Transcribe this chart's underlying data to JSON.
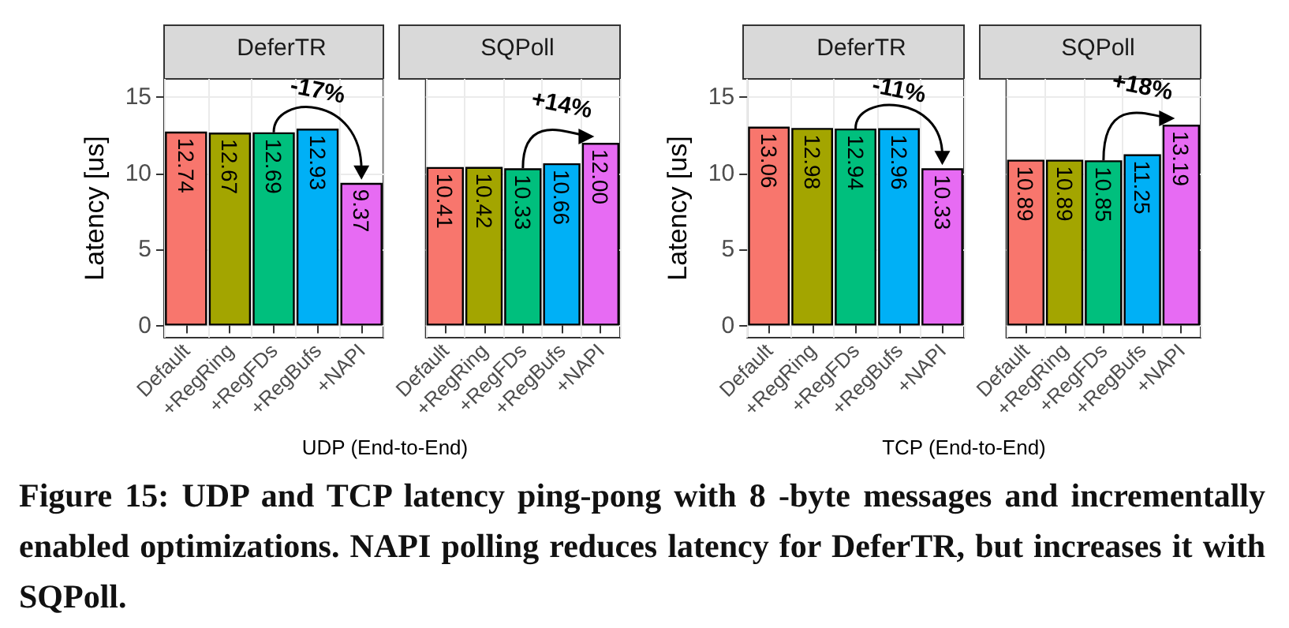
{
  "chart_data": [
    {
      "type": "bar",
      "title": "DeferTR",
      "ylabel": "Latency [us]",
      "xlabel": "UDP (End-to-End)",
      "categories": [
        "Default",
        "+RegRing",
        "+RegFDs",
        "+RegBufs",
        "+NAPI"
      ],
      "values": [
        12.74,
        12.67,
        12.69,
        12.93,
        9.37
      ],
      "value_labels": [
        "12.74",
        "12.67",
        "12.69",
        "12.93",
        "9.37"
      ],
      "colors": [
        "#f8766d",
        "#a3a500",
        "#00bf7d",
        "#00b0f6",
        "#e76bf3"
      ],
      "ylim": [
        -0.8,
        16.2
      ],
      "yticks": [
        0,
        5,
        10,
        15
      ],
      "grid": true,
      "annotations": [
        "-17%",
        "Figure 15: UDP and TCP latency ping-pong with 8 -byte messages and incrementally enabled optimizations. NAPI polling reduces latency for DeferTR, but increases it with SQPoll."
      ]
    },
    {
      "type": "bar",
      "title": "SQPoll",
      "categories": [
        "Default",
        "+RegRing",
        "+RegFDs",
        "+RegBufs",
        "+NAPI"
      ],
      "values": [
        10.41,
        10.42,
        10.33,
        10.66,
        12.0
      ],
      "value_labels": [
        "10.41",
        "10.42",
        "10.33",
        "10.66",
        "12.00"
      ],
      "colors": [
        "#f8766d",
        "#a3a500",
        "#00bf7d",
        "#00b0f6",
        "#e76bf3"
      ],
      "ylim": [
        -0.8,
        16.2
      ],
      "yticks": [
        0,
        5,
        10,
        15
      ],
      "grid": true,
      "tick_labels": "x",
      "annotations": [
        "+14%"
      ]
    },
    {
      "type": "bar",
      "title": "DeferTR",
      "ylabel": "Latency [us]",
      "xlabel": "TCP (End-to-End)",
      "categories": [
        "Default",
        "+RegRing",
        "+RegFDs",
        "+RegBufs",
        "+NAPI"
      ],
      "values": [
        13.06,
        12.98,
        12.94,
        12.96,
        10.33
      ],
      "value_labels": [
        "13.06",
        "12.98",
        "12.94",
        "12.96",
        "10.33"
      ],
      "colors": [
        "#f8766d",
        "#a3a500",
        "#00bf7d",
        "#00b0f6",
        "#e76bf3"
      ],
      "ylim": [
        -0.8,
        16.2
      ],
      "yticks": [
        0,
        5,
        10,
        15
      ],
      "grid": true,
      "annotations": [
        "-11%"
      ]
    },
    {
      "type": "bar",
      "title": "SQPoll",
      "categories": [
        "Default",
        "+RegRing",
        "+RegFDs",
        "+RegBufs",
        "+NAPI"
      ],
      "values": [
        10.89,
        10.89,
        10.85,
        11.25,
        13.19
      ],
      "value_labels": [
        "10.89",
        "10.89",
        "10.85",
        "11.25",
        "13.19"
      ],
      "colors": [
        "#f8766d",
        "#a3a500",
        "#00bf7d",
        "#00b0f6",
        "#e76bf3"
      ],
      "ylim": [
        -0.8,
        16.2
      ],
      "yticks": [
        0,
        5,
        10,
        15
      ],
      "grid": true,
      "tick_labels": "x",
      "annotations": [
        "+18%"
      ]
    }
  ]
}
